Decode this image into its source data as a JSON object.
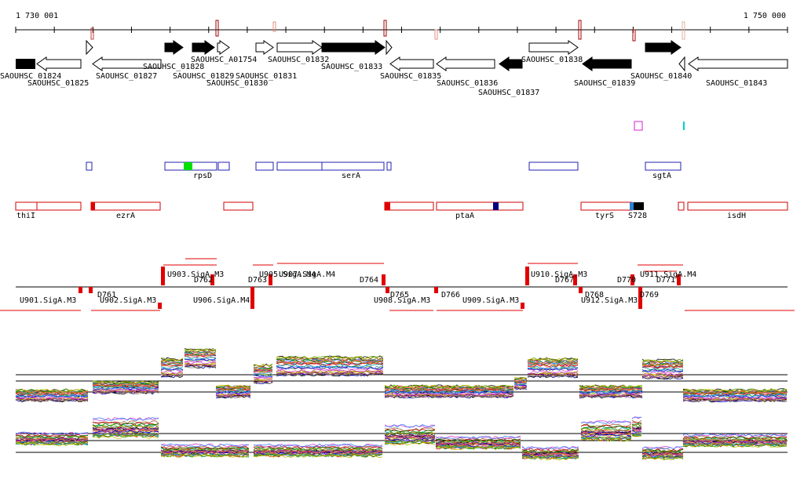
{
  "ruler": {
    "start": "1 730 001",
    "end": "1 750 000"
  },
  "genes": [
    "SAOUHSC_01824",
    "SAOUHSC_01825",
    "SAOUHSC_01827",
    "SAOUHSC_01828",
    "SAOUHSC_01829",
    "SAOUHSC_A01754",
    "SAOUHSC_01830",
    "SAOUHSC_01831",
    "SAOUHSC_01832",
    "SAOUHSC_01833",
    "SAOUHSC_01835",
    "SAOUHSC_01836",
    "SAOUHSC_01837",
    "SAOUHSC_01838",
    "SAOUHSC_01839",
    "SAOUHSC_01840",
    "SAOUHSC_01843"
  ],
  "operons": [
    "rpsD",
    "serA",
    "sgtA"
  ],
  "transcripts": [
    "thiI",
    "ezrA",
    "ptaA",
    "tyrS",
    "S728",
    "isdH"
  ],
  "segments": [
    "U901.SigA.M3",
    "D761",
    "U902.SigA.M3",
    "U903.SigA.M3",
    "D762",
    "U906.SigA.M4",
    "D763",
    "U905.SigA.M4",
    "U907.SigA.M4",
    "D764",
    "D765",
    "U908.SigA.M3",
    "D766",
    "U909.SigA.M3",
    "U910.SigA.M3",
    "D767",
    "D768",
    "U912.SigA.M3",
    "D770",
    "D769",
    "U911.SigA.M4",
    "D771"
  ]
}
